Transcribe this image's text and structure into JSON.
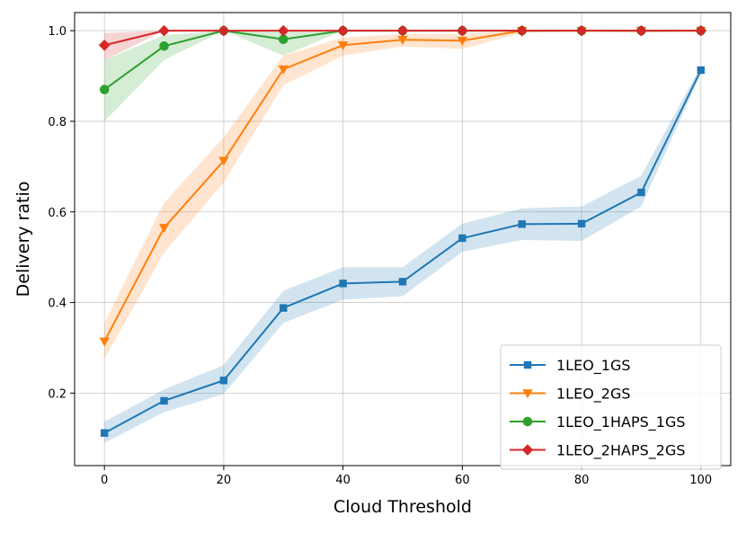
{
  "chart_data": {
    "type": "line",
    "title": "",
    "xlabel": "Cloud Threshold",
    "ylabel": "Delivery ratio",
    "xlim": [
      -5,
      105
    ],
    "ylim": [
      0.04,
      1.04
    ],
    "x_ticks": [
      0,
      20,
      40,
      60,
      80,
      100
    ],
    "y_ticks": [
      0.2,
      0.4,
      0.6,
      0.8,
      1.0
    ],
    "x_tick_labels": [
      "0",
      "20",
      "40",
      "60",
      "80",
      "100"
    ],
    "y_tick_labels": [
      "0.2",
      "0.4",
      "0.6",
      "0.8",
      "1.0"
    ],
    "grid": true,
    "legend_position": "lower-right",
    "x": [
      0,
      10,
      20,
      30,
      40,
      50,
      60,
      70,
      80,
      90,
      100
    ],
    "series": [
      {
        "name": "1LEO_1GS",
        "color": "#1f77b4",
        "marker": "square",
        "values": [
          0.112,
          0.183,
          0.228,
          0.388,
          0.442,
          0.446,
          0.542,
          0.573,
          0.574,
          0.643,
          0.913
        ],
        "lower": [
          0.09,
          0.158,
          0.198,
          0.355,
          0.406,
          0.414,
          0.512,
          0.538,
          0.536,
          0.612,
          0.905
        ],
        "upper": [
          0.137,
          0.208,
          0.262,
          0.426,
          0.478,
          0.478,
          0.574,
          0.608,
          0.612,
          0.68,
          0.922
        ]
      },
      {
        "name": "1LEO_2GS",
        "color": "#ff7f0e",
        "marker": "triangle-down",
        "values": [
          0.314,
          0.565,
          0.713,
          0.915,
          0.968,
          0.98,
          0.978,
          1.0,
          1.0,
          1.0,
          1.0
        ],
        "lower": [
          0.275,
          0.51,
          0.665,
          0.88,
          0.945,
          0.965,
          0.96,
          0.995,
          1.0,
          0.995,
          1.0
        ],
        "upper": [
          0.355,
          0.62,
          0.765,
          0.945,
          0.985,
          0.993,
          0.993,
          1.0,
          1.0,
          1.0,
          1.0
        ]
      },
      {
        "name": "1LEO_1HAPS_1GS",
        "color": "#2ca02c",
        "marker": "circle",
        "values": [
          0.87,
          0.966,
          1.0,
          0.981,
          1.0,
          1.0,
          1.0,
          1.0,
          1.0,
          1.0,
          1.0
        ],
        "lower": [
          0.8,
          0.935,
          1.0,
          0.945,
          1.0,
          1.0,
          1.0,
          1.0,
          1.0,
          1.0,
          1.0
        ],
        "upper": [
          0.935,
          0.99,
          1.0,
          1.0,
          1.0,
          1.0,
          1.0,
          1.0,
          1.0,
          1.0,
          1.0
        ]
      },
      {
        "name": "1LEO_2HAPS_2GS",
        "color": "#d62728",
        "marker": "diamond",
        "values": [
          0.968,
          1.0,
          1.0,
          1.0,
          1.0,
          1.0,
          1.0,
          1.0,
          1.0,
          1.0,
          1.0
        ],
        "lower": [
          0.935,
          1.0,
          1.0,
          1.0,
          1.0,
          1.0,
          1.0,
          1.0,
          1.0,
          1.0,
          1.0
        ],
        "upper": [
          0.995,
          1.0,
          1.0,
          1.0,
          1.0,
          1.0,
          1.0,
          1.0,
          1.0,
          1.0,
          1.0
        ]
      }
    ]
  }
}
